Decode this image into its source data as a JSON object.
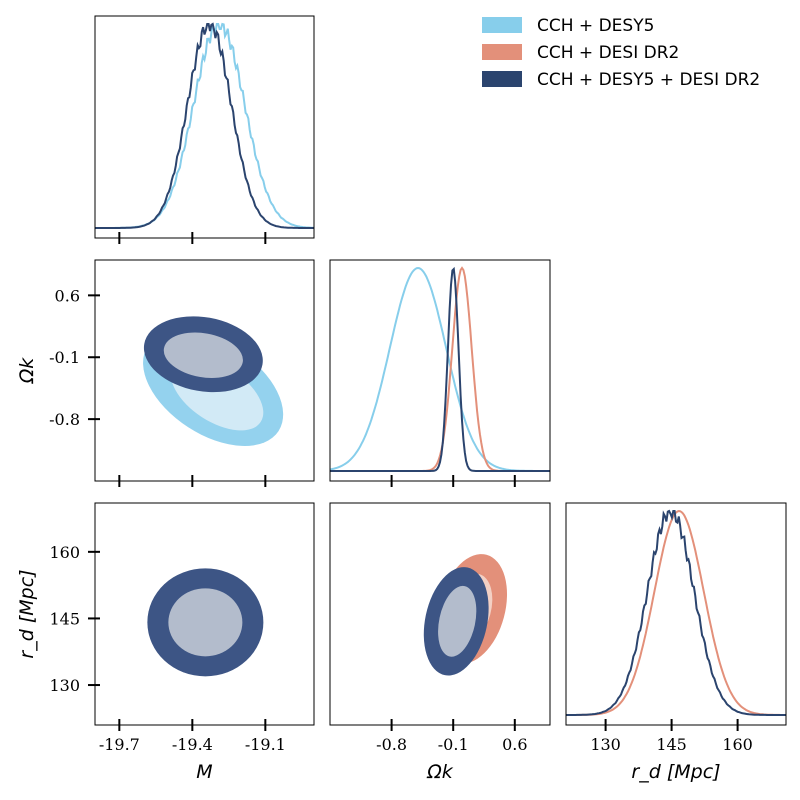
{
  "chart_data": {
    "type": "corner",
    "parameters": [
      "M",
      "Ωk",
      "r_d"
    ],
    "axis_labels": {
      "M": "M",
      "Omega_k": "Ωk",
      "r_d": "r_d [Mpc]"
    },
    "ticks": {
      "M": {
        "values": [
          -19.7,
          -19.4,
          -19.1
        ],
        "labels": [
          "-19.7",
          "-19.4",
          "-19.1"
        ]
      },
      "Omega_k": {
        "values": [
          -0.8,
          -0.1,
          0.6
        ],
        "labels": [
          "-0.8",
          "-0.1",
          "0.6"
        ]
      },
      "r_d": {
        "values": [
          130,
          145,
          160
        ],
        "labels": [
          "130",
          "145",
          "160"
        ]
      }
    },
    "ranges": {
      "M": [
        -19.8,
        -18.9
      ],
      "Omega_k": [
        -1.5,
        1.0
      ],
      "r_d": [
        121,
        171
      ]
    },
    "legend": {
      "position": "top-right",
      "entries": [
        {
          "label": "CCH + DESY5",
          "color": "#87ceeb"
        },
        {
          "label": "CCH + DESI DR2",
          "color": "#e3907a"
        },
        {
          "label": "CCH + DESY5 + DESI DR2",
          "color": "#2b446e"
        }
      ]
    },
    "series": [
      {
        "name": "CCH + DESY5",
        "color": "#87ceeb",
        "inner_color": "#d2eaf6",
        "outer_color": "#94d2ee",
        "M": {
          "mean": -19.29,
          "sd": 0.105
        },
        "Omega_k": {
          "mean": -0.5,
          "sd": 0.32
        }
      },
      {
        "name": "CCH + DESI DR2",
        "color": "#e3907a",
        "inner_color": "#f3d0c4",
        "outer_color": "#e3907a",
        "Omega_k": {
          "mean": 0.0,
          "sd": 0.11
        },
        "r_d": {
          "mean": 146.7,
          "sd": 5.6
        }
      },
      {
        "name": "CCH + DESY5 + DESI DR2",
        "color": "#2b446e",
        "inner_color": "#b3bccc",
        "outer_color": "#3d5585",
        "M": {
          "mean": -19.33,
          "sd": 0.09
        },
        "Omega_k": {
          "mean": -0.1,
          "sd": 0.06
        },
        "r_d": {
          "mean": 144.8,
          "sd": 5.3
        }
      }
    ]
  }
}
